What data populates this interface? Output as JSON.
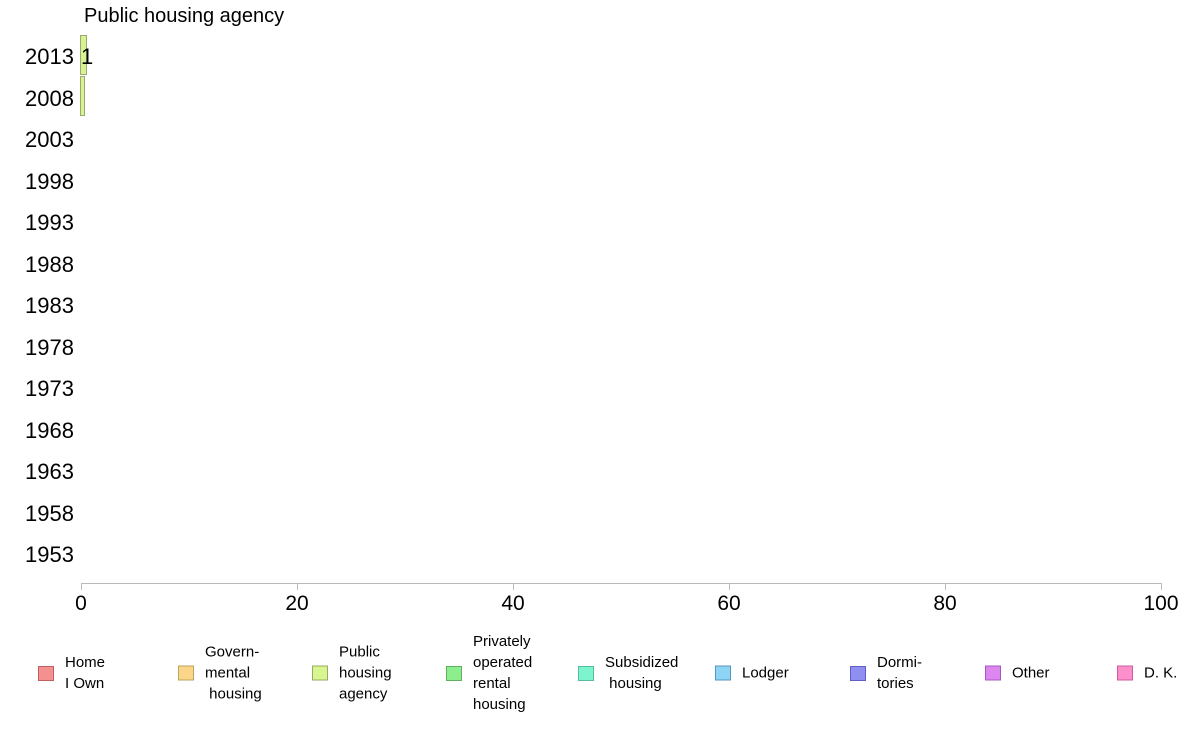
{
  "chart_data": {
    "type": "bar",
    "orientation": "horizontal",
    "title": "Public housing agency",
    "series_name": "Public housing agency",
    "categories": [
      "2013",
      "2008",
      "2003",
      "1998",
      "1993",
      "1988",
      "1983",
      "1978",
      "1973",
      "1968",
      "1963",
      "1958",
      "1953"
    ],
    "values": [
      0.65,
      0.45,
      0,
      0,
      0,
      0,
      0,
      0,
      0,
      0,
      0,
      0,
      0
    ],
    "bar_labels": [
      "1",
      "",
      "",
      "",
      "",
      "",
      "",
      "",
      "",
      "",
      "",
      "",
      ""
    ],
    "xlabel": "",
    "ylabel": "",
    "xlim": [
      0,
      100
    ],
    "x_ticks": [
      0,
      20,
      40,
      60,
      80,
      100
    ],
    "grid": false,
    "legend_position": "bottom",
    "colors": {
      "bar_fill": "#d8f193",
      "bar_border": "#9bab6e",
      "axis": "#bababa",
      "text": "#000000",
      "background": "#ffffff"
    },
    "legend": [
      {
        "label_lines": [
          "Home",
          "I Own"
        ],
        "fill": "#f4908f",
        "border": "#be6060"
      },
      {
        "label_lines": [
          "Govern-",
          "mental",
          " housing"
        ],
        "fill": "#fbd688",
        "border": "#bba25e"
      },
      {
        "label_lines": [
          "Public",
          "housing",
          "agency"
        ],
        "fill": "#d8f68f",
        "border": "#97a966"
      },
      {
        "label_lines": [
          "Privately",
          "operated",
          "rental",
          "housing"
        ],
        "fill": "#8cee8c",
        "border": "#62af62"
      },
      {
        "label_lines": [
          "Subsidized",
          " housing"
        ],
        "fill": "#7df3ce",
        "border": "#55bca2"
      },
      {
        "label_lines": [
          "Lodger"
        ],
        "fill": "#8ed4f4",
        "border": "#5795c5"
      },
      {
        "label_lines": [
          "Dormi-",
          "tories"
        ],
        "fill": "#8f8ff1",
        "border": "#5e5ec4"
      },
      {
        "label_lines": [
          "Other"
        ],
        "fill": "#dd86ef",
        "border": "#a459bf"
      },
      {
        "label_lines": [
          "D. K."
        ],
        "fill": "#fc8fcc",
        "border": "#ce5b9e"
      }
    ]
  }
}
